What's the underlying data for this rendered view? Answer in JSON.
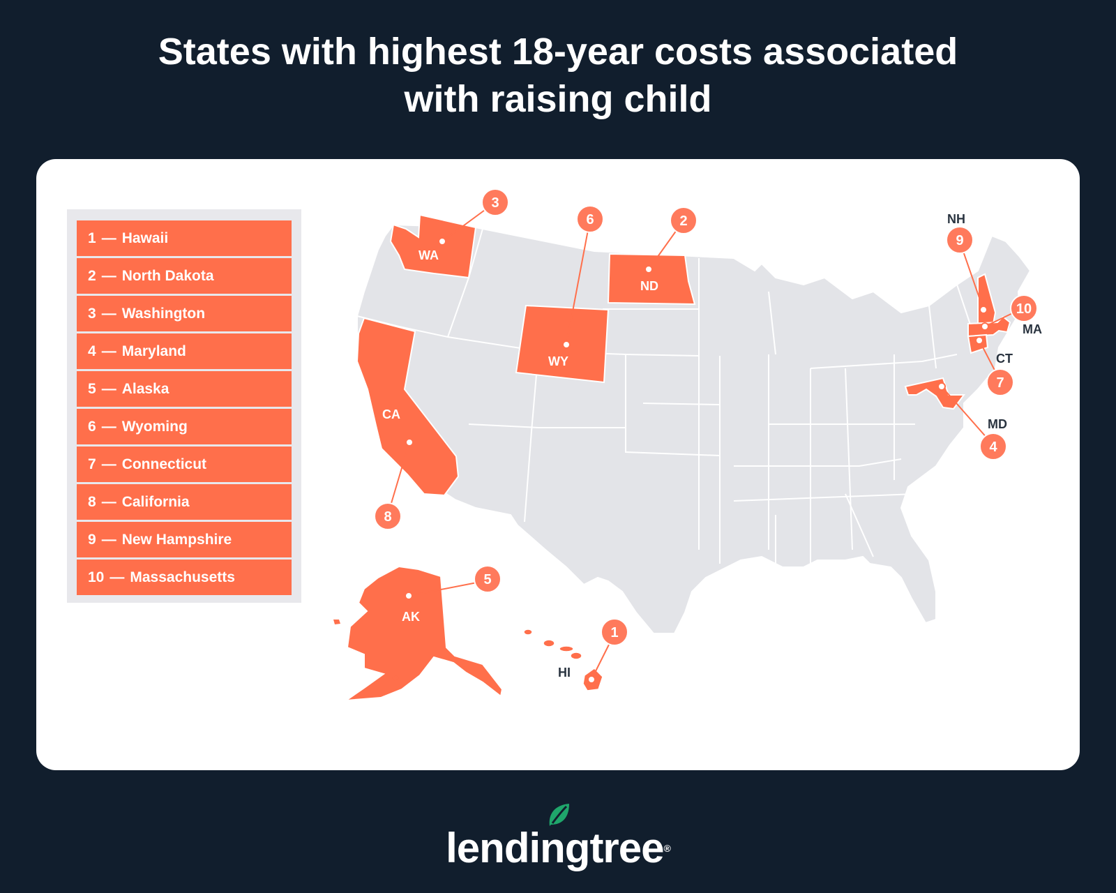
{
  "title": {
    "line1": "States with highest 18-year costs associated",
    "line2": "with raising child"
  },
  "legend": [
    {
      "rank": "1",
      "state": "Hawaii"
    },
    {
      "rank": "2",
      "state": "North Dakota"
    },
    {
      "rank": "3",
      "state": "Washington"
    },
    {
      "rank": "4",
      "state": "Maryland"
    },
    {
      "rank": "5",
      "state": "Alaska"
    },
    {
      "rank": "6",
      "state": "Wyoming"
    },
    {
      "rank": "7",
      "state": "Connecticut"
    },
    {
      "rank": "8",
      "state": "California"
    },
    {
      "rank": "9",
      "state": "New Hampshire"
    },
    {
      "rank": "10",
      "state": "Massachusetts"
    }
  ],
  "map": {
    "highlight_color": "#ff6f4b",
    "base_color": "#e3e4e8",
    "labels": {
      "WA": "WA",
      "ND": "ND",
      "WY": "WY",
      "CA": "CA",
      "AK": "AK",
      "HI": "HI",
      "NH": "NH",
      "MA": "MA",
      "CT": "CT",
      "MD": "MD"
    },
    "callouts": {
      "WA": "3",
      "WY": "6",
      "ND": "2",
      "CA": "8",
      "AK": "5",
      "HI": "1",
      "NH": "9",
      "MA": "10",
      "CT": "7",
      "MD": "4"
    }
  },
  "brand": {
    "name": "lendingtree",
    "registered": "®",
    "leaf_color": "#1fa66b"
  }
}
